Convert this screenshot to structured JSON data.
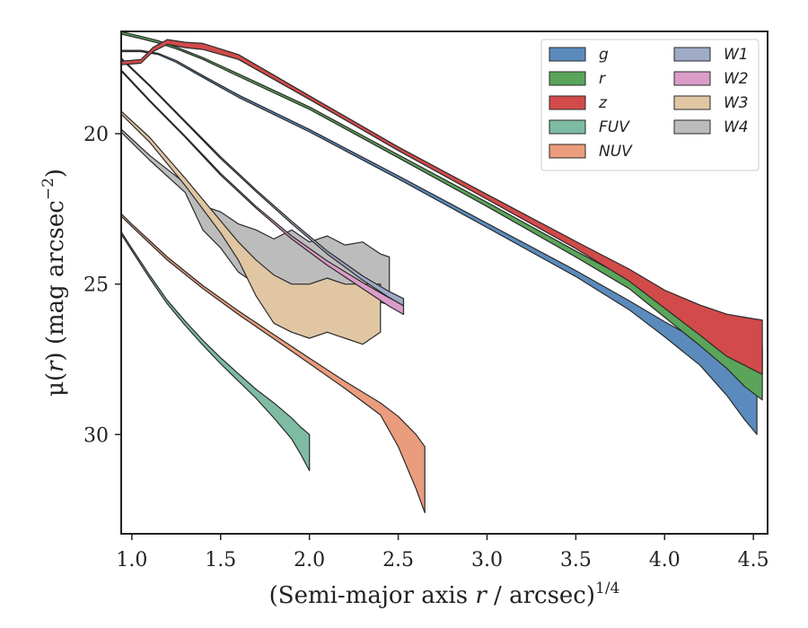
{
  "chart_data": {
    "type": "area",
    "xlabel": "(Semi-major axis r / arcsec)^1/4",
    "xlabel_main": "(Semi-major axis ",
    "xlabel_var": "r",
    "xlabel_rest": " / arcsec)",
    "xlabel_exp": "1/4",
    "ylabel": "μ(r) (mag arcsec^−2)",
    "ylabel_main": "μ(",
    "ylabel_var": "r",
    "ylabel_rest": ") (mag arcsec",
    "ylabel_exp": "−2",
    "ylabel_close": ")",
    "xlim": [
      0.94,
      4.58
    ],
    "ylim": [
      33.3,
      16.6
    ],
    "y_inverted": true,
    "xticks": [
      1.0,
      1.5,
      2.0,
      2.5,
      3.0,
      3.5,
      4.0,
      4.5
    ],
    "xtick_labels": [
      "1.0",
      "1.5",
      "2.0",
      "2.5",
      "3.0",
      "3.5",
      "4.0",
      "4.5"
    ],
    "yticks": [
      20,
      25,
      30
    ],
    "ytick_labels": [
      "20",
      "25",
      "30"
    ],
    "grid": false,
    "legend_position": "top-right",
    "legend_columns": 2,
    "series": [
      {
        "name": "g",
        "color": "#5b8bbd",
        "x": [
          0.94,
          1.05,
          1.15,
          1.25,
          1.4,
          1.6,
          2.0,
          2.5,
          3.0,
          3.5,
          3.8,
          4.0,
          4.2,
          4.35,
          4.45,
          4.52
        ],
        "y": [
          17.25,
          17.25,
          17.35,
          17.6,
          18.1,
          18.75,
          19.9,
          21.45,
          23.05,
          24.65,
          25.7,
          26.5,
          27.3,
          28.0,
          28.5,
          28.9
        ],
        "y_lower_error": [
          0.02,
          0.02,
          0.02,
          0.03,
          0.03,
          0.04,
          0.04,
          0.05,
          0.07,
          0.1,
          0.15,
          0.25,
          0.4,
          0.7,
          1.0,
          1.1
        ],
        "y_upper_error": [
          0.02,
          0.02,
          0.02,
          0.03,
          0.03,
          0.04,
          0.04,
          0.05,
          0.07,
          0.1,
          0.15,
          0.25,
          0.4,
          0.7,
          0.6,
          0.6
        ]
      },
      {
        "name": "r",
        "color": "#5aa55a",
        "x": [
          0.94,
          1.05,
          1.15,
          1.25,
          1.4,
          1.6,
          2.0,
          2.5,
          3.0,
          3.5,
          3.8,
          4.0,
          4.2,
          4.35,
          4.45,
          4.55
        ],
        "y": [
          16.65,
          16.8,
          16.95,
          17.15,
          17.5,
          18.05,
          19.15,
          20.75,
          22.35,
          24.0,
          25.0,
          25.85,
          26.6,
          27.1,
          27.6,
          27.95
        ],
        "y_lower_error": [
          0.04,
          0.04,
          0.04,
          0.03,
          0.03,
          0.04,
          0.04,
          0.05,
          0.07,
          0.1,
          0.15,
          0.25,
          0.45,
          0.7,
          0.8,
          0.9
        ],
        "y_upper_error": [
          0.04,
          0.04,
          0.04,
          0.03,
          0.03,
          0.04,
          0.04,
          0.05,
          0.07,
          0.1,
          0.15,
          0.25,
          0.45,
          0.7,
          0.8,
          0.9
        ]
      },
      {
        "name": "z",
        "color": "#d24a4a",
        "x": [
          0.94,
          1.05,
          1.12,
          1.2,
          1.3,
          1.4,
          1.6,
          2.0,
          2.5,
          3.0,
          3.5,
          3.8,
          4.0,
          4.2,
          4.35,
          4.45,
          4.55
        ],
        "y": [
          17.65,
          17.6,
          17.2,
          16.95,
          17.05,
          17.1,
          17.45,
          18.8,
          20.5,
          22.1,
          23.7,
          24.7,
          25.5,
          26.2,
          26.7,
          26.9,
          27.1
        ],
        "y_lower_error": [
          0.06,
          0.06,
          0.07,
          0.08,
          0.09,
          0.1,
          0.08,
          0.06,
          0.06,
          0.08,
          0.12,
          0.2,
          0.3,
          0.5,
          0.7,
          0.8,
          0.9
        ],
        "y_upper_error": [
          0.06,
          0.06,
          0.07,
          0.08,
          0.09,
          0.1,
          0.08,
          0.06,
          0.06,
          0.08,
          0.12,
          0.2,
          0.3,
          0.5,
          0.7,
          0.8,
          0.9
        ]
      },
      {
        "name": "FUV",
        "color": "#7dbba3",
        "x": [
          0.94,
          1.0,
          1.1,
          1.2,
          1.3,
          1.4,
          1.5,
          1.6,
          1.7,
          1.8,
          1.9,
          1.95,
          2.0
        ],
        "y": [
          23.3,
          23.85,
          24.75,
          25.6,
          26.3,
          26.95,
          27.55,
          28.1,
          28.65,
          29.2,
          29.8,
          30.2,
          30.6
        ],
        "y_lower_error": [
          0.04,
          0.04,
          0.05,
          0.06,
          0.07,
          0.08,
          0.1,
          0.12,
          0.15,
          0.25,
          0.35,
          0.45,
          0.6
        ],
        "y_upper_error": [
          0.04,
          0.04,
          0.05,
          0.06,
          0.07,
          0.08,
          0.1,
          0.12,
          0.15,
          0.25,
          0.35,
          0.45,
          0.6
        ]
      },
      {
        "name": "NUV",
        "color": "#ea9c7c",
        "x": [
          0.94,
          1.0,
          1.2,
          1.4,
          1.6,
          1.8,
          2.0,
          2.2,
          2.4,
          2.5,
          2.6,
          2.65
        ],
        "y": [
          22.7,
          23.05,
          24.15,
          25.1,
          25.95,
          26.75,
          27.55,
          28.35,
          29.15,
          29.9,
          30.9,
          31.5
        ],
        "y_lower_error": [
          0.04,
          0.04,
          0.05,
          0.05,
          0.06,
          0.07,
          0.09,
          0.12,
          0.2,
          0.5,
          0.9,
          1.1
        ],
        "y_upper_error": [
          0.04,
          0.04,
          0.05,
          0.05,
          0.06,
          0.07,
          0.09,
          0.12,
          0.2,
          0.5,
          0.9,
          1.1
        ]
      },
      {
        "name": "W1",
        "color": "#9fabc7",
        "x": [
          0.94,
          1.1,
          1.3,
          1.5,
          1.7,
          1.9,
          2.1,
          2.3,
          2.45,
          2.53
        ],
        "y": [
          17.5,
          18.4,
          19.6,
          20.8,
          21.9,
          22.95,
          23.95,
          24.8,
          25.35,
          25.6
        ],
        "y_lower_error": [
          0.02,
          0.02,
          0.02,
          0.03,
          0.03,
          0.04,
          0.05,
          0.07,
          0.1,
          0.12
        ],
        "y_upper_error": [
          0.02,
          0.02,
          0.02,
          0.03,
          0.03,
          0.04,
          0.05,
          0.07,
          0.1,
          0.12
        ]
      },
      {
        "name": "W2",
        "color": "#dc9cc9",
        "x": [
          0.94,
          1.1,
          1.3,
          1.5,
          1.7,
          1.9,
          2.1,
          2.3,
          2.45,
          2.53
        ],
        "y": [
          17.9,
          18.9,
          20.1,
          21.35,
          22.45,
          23.45,
          24.3,
          25.05,
          25.6,
          25.85
        ],
        "y_lower_error": [
          0.02,
          0.02,
          0.02,
          0.03,
          0.03,
          0.05,
          0.07,
          0.1,
          0.14,
          0.16
        ],
        "y_upper_error": [
          0.02,
          0.02,
          0.02,
          0.03,
          0.03,
          0.05,
          0.07,
          0.1,
          0.14,
          0.16
        ]
      },
      {
        "name": "W3",
        "color": "#e0c6a3",
        "x": [
          0.94,
          1.1,
          1.3,
          1.5,
          1.6,
          1.7,
          1.8,
          1.9,
          2.0,
          2.1,
          2.2,
          2.3,
          2.4
        ],
        "y": [
          19.3,
          20.2,
          21.6,
          23.1,
          23.9,
          24.8,
          25.5,
          25.8,
          25.9,
          25.7,
          25.9,
          26.0,
          25.8
        ],
        "y_lower_error": [
          0.05,
          0.08,
          0.12,
          0.2,
          0.3,
          0.6,
          0.8,
          0.8,
          0.9,
          0.9,
          0.9,
          1.0,
          0.8
        ],
        "y_upper_error": [
          0.05,
          0.08,
          0.12,
          0.2,
          0.3,
          0.6,
          0.8,
          0.8,
          0.9,
          0.9,
          0.9,
          1.0,
          0.8
        ]
      },
      {
        "name": "W4",
        "color": "#bcbcbc",
        "x": [
          0.94,
          1.1,
          1.3,
          1.4,
          1.5,
          1.6,
          1.7,
          1.8,
          1.9,
          2.0,
          2.1,
          2.2,
          2.3,
          2.4,
          2.45
        ],
        "y": [
          19.9,
          20.8,
          21.8,
          22.8,
          23.2,
          23.8,
          24.1,
          24.4,
          24.2,
          24.6,
          24.4,
          24.6,
          24.5,
          24.8,
          24.9
        ],
        "y_lower_error": [
          0.05,
          0.08,
          0.15,
          0.4,
          0.6,
          0.8,
          0.9,
          0.9,
          1.0,
          1.0,
          1.0,
          0.9,
          0.9,
          0.8,
          0.8
        ],
        "y_upper_error": [
          0.05,
          0.08,
          0.15,
          0.4,
          0.6,
          0.8,
          0.9,
          0.9,
          1.0,
          1.0,
          1.0,
          0.9,
          0.9,
          0.8,
          0.8
        ]
      }
    ]
  }
}
